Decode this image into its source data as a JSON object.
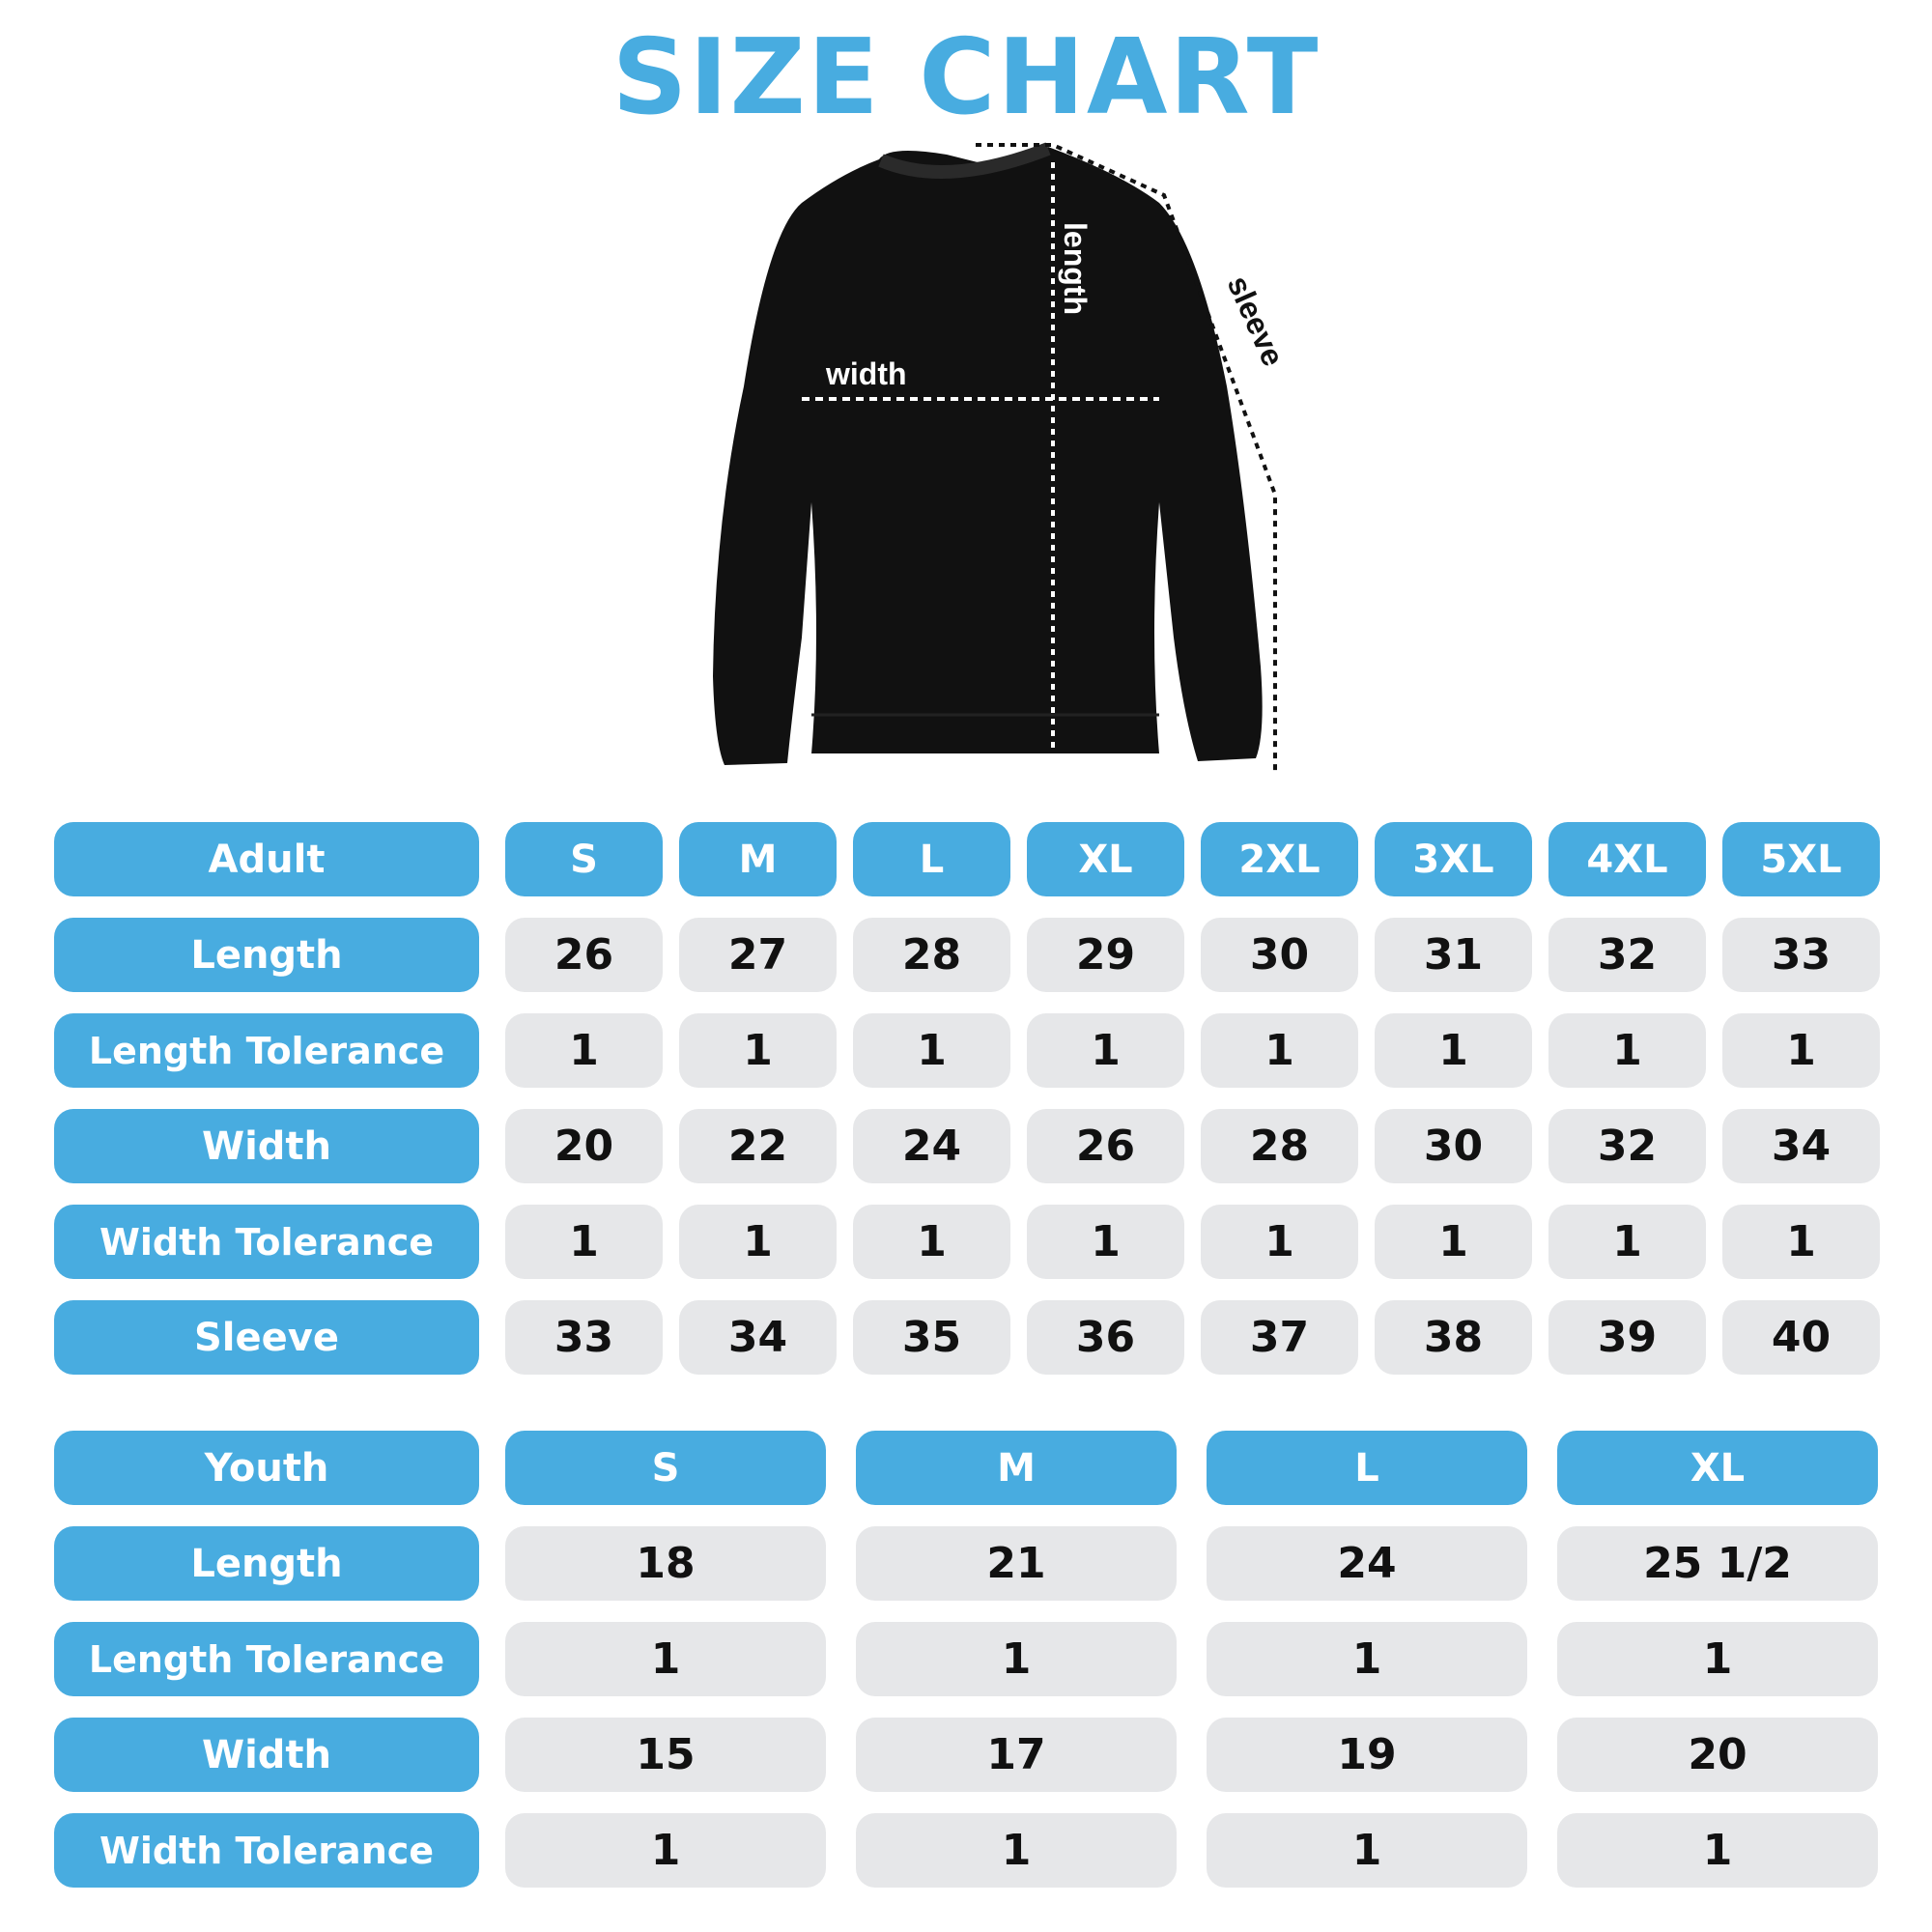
{
  "title": "SIZE CHART",
  "diagram": {
    "length_label": "length",
    "width_label": "width",
    "sleeve_label": "sleeve"
  },
  "colors": {
    "accent": "#48ace0",
    "cell_bg": "#e6e7e9",
    "text": "#111111"
  },
  "adult": {
    "header": "Adult",
    "sizes": [
      "S",
      "M",
      "L",
      "XL",
      "2XL",
      "3XL",
      "4XL",
      "5XL"
    ],
    "rows": [
      {
        "label": "Length",
        "values": [
          "26",
          "27",
          "28",
          "29",
          "30",
          "31",
          "32",
          "33"
        ]
      },
      {
        "label": "Length Tolerance",
        "values": [
          "1",
          "1",
          "1",
          "1",
          "1",
          "1",
          "1",
          "1"
        ]
      },
      {
        "label": "Width",
        "values": [
          "20",
          "22",
          "24",
          "26",
          "28",
          "30",
          "32",
          "34"
        ]
      },
      {
        "label": "Width Tolerance",
        "values": [
          "1",
          "1",
          "1",
          "1",
          "1",
          "1",
          "1",
          "1"
        ]
      },
      {
        "label": "Sleeve",
        "values": [
          "33",
          "34",
          "35",
          "36",
          "37",
          "38",
          "39",
          "40"
        ]
      }
    ]
  },
  "youth": {
    "header": "Youth",
    "sizes": [
      "S",
      "M",
      "L",
      "XL"
    ],
    "rows": [
      {
        "label": "Length",
        "values": [
          "18",
          "21",
          "24",
          "25 1/2"
        ]
      },
      {
        "label": "Length Tolerance",
        "values": [
          "1",
          "1",
          "1",
          "1"
        ]
      },
      {
        "label": "Width",
        "values": [
          "15",
          "17",
          "19",
          "20"
        ]
      },
      {
        "label": "Width Tolerance",
        "values": [
          "1",
          "1",
          "1",
          "1"
        ]
      }
    ]
  }
}
